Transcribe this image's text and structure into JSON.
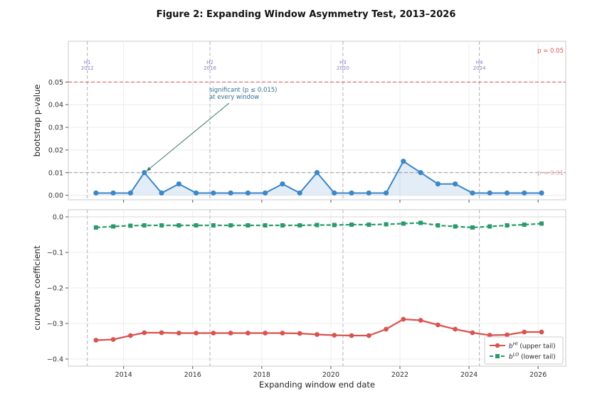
{
  "title": "Figure 2: Expanding Window Asymmetry Test, 2013–2026",
  "chart_data": [
    {
      "type": "line",
      "panel": "top",
      "ylabel": "bootstrap p-value",
      "ylim": [
        -0.002,
        0.068
      ],
      "yticks": [
        0.0,
        0.01,
        0.02,
        0.03,
        0.04,
        0.05
      ],
      "ytick_labels": [
        "0.00",
        "0.01",
        "0.02",
        "0.03",
        "0.04",
        "0.05"
      ],
      "grid": true,
      "fill_under": true,
      "color": "#3b87c7",
      "x": [
        2013.2,
        2013.7,
        2014.2,
        2014.6,
        2015.1,
        2015.6,
        2016.1,
        2016.6,
        2017.1,
        2017.6,
        2018.1,
        2018.6,
        2019.1,
        2019.6,
        2020.1,
        2020.6,
        2021.1,
        2021.6,
        2022.1,
        2022.6,
        2023.1,
        2023.6,
        2024.1,
        2024.6,
        2025.1,
        2025.6,
        2026.1
      ],
      "values": [
        0.001,
        0.001,
        0.001,
        0.01,
        0.001,
        0.005,
        0.001,
        0.001,
        0.001,
        0.001,
        0.001,
        0.005,
        0.001,
        0.01,
        0.001,
        0.001,
        0.001,
        0.001,
        0.015,
        0.01,
        0.005,
        0.005,
        0.001,
        0.001,
        0.001,
        0.001,
        0.001
      ],
      "reference_lines": [
        {
          "y": 0.05,
          "label": "p = 0.05",
          "color": "#d9534f"
        },
        {
          "y": 0.01,
          "label": "p = 0.01",
          "color": "#999999"
        }
      ],
      "annotation": {
        "lines": [
          "significant (p ≤ 0.015)",
          "at every window"
        ],
        "arrow_to_x": 2014.6,
        "arrow_to_y": 0.01
      }
    },
    {
      "type": "line",
      "panel": "bottom",
      "xlabel": "Expanding window end date",
      "ylabel": "curvature coefficient",
      "ylim": [
        -0.42,
        0.02
      ],
      "yticks": [
        0.0,
        -0.1,
        -0.2,
        -0.3,
        -0.4
      ],
      "ytick_labels": [
        "0.0",
        "−0.1",
        "−0.2",
        "−0.3",
        "−0.4"
      ],
      "grid": true,
      "legend": "bottom-right",
      "series": [
        {
          "name": "upper tail",
          "sym": "HI",
          "color": "#d9534f",
          "marker": "circle",
          "dashed": false,
          "x": [
            2013.2,
            2013.7,
            2014.2,
            2014.6,
            2015.1,
            2015.6,
            2016.1,
            2016.6,
            2017.1,
            2017.6,
            2018.1,
            2018.6,
            2019.1,
            2019.6,
            2020.1,
            2020.6,
            2021.1,
            2021.6,
            2022.1,
            2022.6,
            2023.1,
            2023.6,
            2024.1,
            2024.6,
            2025.1,
            2025.6,
            2026.1
          ],
          "values": [
            -0.347,
            -0.345,
            -0.334,
            -0.326,
            -0.326,
            -0.327,
            -0.327,
            -0.327,
            -0.327,
            -0.327,
            -0.327,
            -0.327,
            -0.328,
            -0.331,
            -0.333,
            -0.334,
            -0.334,
            -0.316,
            -0.288,
            -0.291,
            -0.304,
            -0.316,
            -0.326,
            -0.333,
            -0.332,
            -0.324,
            -0.324
          ]
        },
        {
          "name": "lower tail",
          "sym": "LO",
          "color": "#2a9a6b",
          "marker": "square",
          "dashed": true,
          "x": [
            2013.2,
            2013.7,
            2014.2,
            2014.6,
            2015.1,
            2015.6,
            2016.1,
            2016.6,
            2017.1,
            2017.6,
            2018.1,
            2018.6,
            2019.1,
            2019.6,
            2020.1,
            2020.6,
            2021.1,
            2021.6,
            2022.1,
            2022.6,
            2023.1,
            2023.6,
            2024.1,
            2024.6,
            2025.1,
            2025.6,
            2026.1
          ],
          "values": [
            -0.03,
            -0.027,
            -0.025,
            -0.024,
            -0.024,
            -0.024,
            -0.024,
            -0.024,
            -0.024,
            -0.024,
            -0.024,
            -0.024,
            -0.024,
            -0.023,
            -0.023,
            -0.022,
            -0.022,
            -0.021,
            -0.019,
            -0.017,
            -0.024,
            -0.027,
            -0.03,
            -0.027,
            -0.024,
            -0.022,
            -0.019
          ]
        }
      ]
    }
  ],
  "x_axis": {
    "xlim": [
      2012.4,
      2026.8
    ],
    "ticks": [
      2014,
      2016,
      2018,
      2020,
      2022,
      2024,
      2026
    ],
    "tick_labels": [
      "2014",
      "2016",
      "2018",
      "2020",
      "2022",
      "2024",
      "2026"
    ]
  },
  "events": [
    {
      "x": 2012.95,
      "name": "H1",
      "year": "2012"
    },
    {
      "x": 2016.5,
      "name": "H2",
      "year": "2016"
    },
    {
      "x": 2020.35,
      "name": "H3",
      "year": "2020"
    },
    {
      "x": 2024.3,
      "name": "H4",
      "year": "2024"
    }
  ]
}
